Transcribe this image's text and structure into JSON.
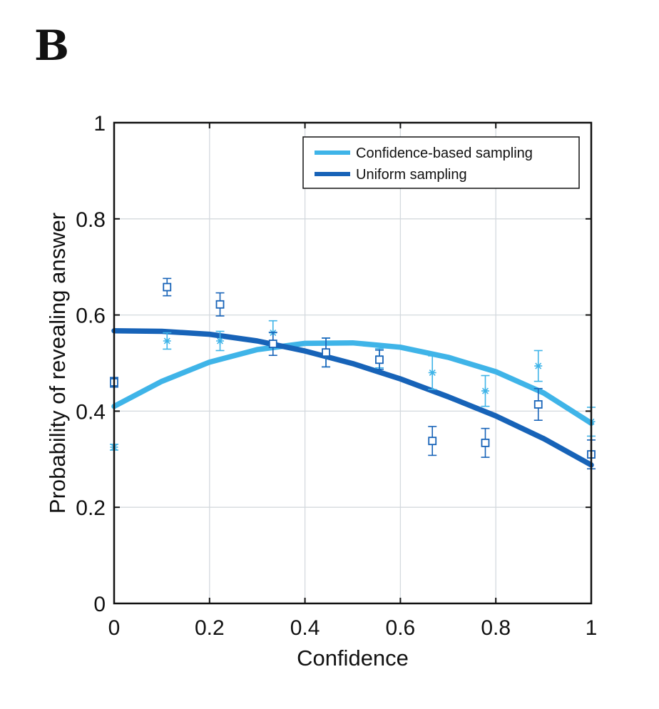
{
  "panel_label": "B",
  "chart_data": {
    "type": "scatter",
    "title": "",
    "xlabel": "Confidence",
    "ylabel": "Probability of revealing answer",
    "xlim": [
      0,
      1
    ],
    "ylim": [
      0,
      1
    ],
    "xticks": [
      0,
      0.2,
      0.4,
      0.6,
      0.8,
      1
    ],
    "yticks": [
      0,
      0.2,
      0.4,
      0.6,
      0.8,
      1
    ],
    "xtick_labels": [
      "0",
      "0.2",
      "0.4",
      "0.6",
      "0.8",
      "1"
    ],
    "ytick_labels": [
      "0",
      "0.2",
      "0.4",
      "0.6",
      "0.8",
      "1"
    ],
    "grid": true,
    "legend_position": "top-right",
    "series": [
      {
        "name": "Confidence-based sampling",
        "color": "#3fb4e8",
        "marker": "asterisk",
        "points": [
          {
            "x": 0.0,
            "y": 0.325,
            "err": 0.006
          },
          {
            "x": 0.111,
            "y": 0.546,
            "err": 0.017
          },
          {
            "x": 0.222,
            "y": 0.546,
            "err": 0.02
          },
          {
            "x": 0.333,
            "y": 0.563,
            "err": 0.025
          },
          {
            "x": 0.444,
            "y": 0.522,
            "err": 0.03
          },
          {
            "x": 0.556,
            "y": 0.51,
            "err": 0.02
          },
          {
            "x": 0.667,
            "y": 0.48,
            "err": 0.035
          },
          {
            "x": 0.778,
            "y": 0.442,
            "err": 0.032
          },
          {
            "x": 0.889,
            "y": 0.494,
            "err": 0.032
          },
          {
            "x": 1.0,
            "y": 0.378,
            "err": 0.03
          }
        ],
        "fit": {
          "x": [
            0,
            0.1,
            0.2,
            0.3,
            0.4,
            0.5,
            0.6,
            0.7,
            0.8,
            0.9,
            1.0
          ],
          "y": [
            0.41,
            0.462,
            0.502,
            0.528,
            0.541,
            0.542,
            0.533,
            0.512,
            0.482,
            0.438,
            0.375
          ]
        }
      },
      {
        "name": "Uniform sampling",
        "color": "#1763b8",
        "marker": "square",
        "points": [
          {
            "x": 0.0,
            "y": 0.46,
            "err": 0.01
          },
          {
            "x": 0.111,
            "y": 0.658,
            "err": 0.018
          },
          {
            "x": 0.222,
            "y": 0.622,
            "err": 0.024
          },
          {
            "x": 0.333,
            "y": 0.54,
            "err": 0.024
          },
          {
            "x": 0.444,
            "y": 0.522,
            "err": 0.03
          },
          {
            "x": 0.556,
            "y": 0.507,
            "err": 0.02
          },
          {
            "x": 0.667,
            "y": 0.338,
            "err": 0.03
          },
          {
            "x": 0.778,
            "y": 0.334,
            "err": 0.03
          },
          {
            "x": 0.889,
            "y": 0.414,
            "err": 0.033
          },
          {
            "x": 1.0,
            "y": 0.31,
            "err": 0.03
          }
        ],
        "fit": {
          "x": [
            0,
            0.1,
            0.2,
            0.3,
            0.4,
            0.5,
            0.6,
            0.7,
            0.8,
            0.9,
            1.0
          ],
          "y": [
            0.567,
            0.566,
            0.56,
            0.546,
            0.525,
            0.499,
            0.467,
            0.43,
            0.39,
            0.343,
            0.288
          ]
        }
      }
    ]
  }
}
